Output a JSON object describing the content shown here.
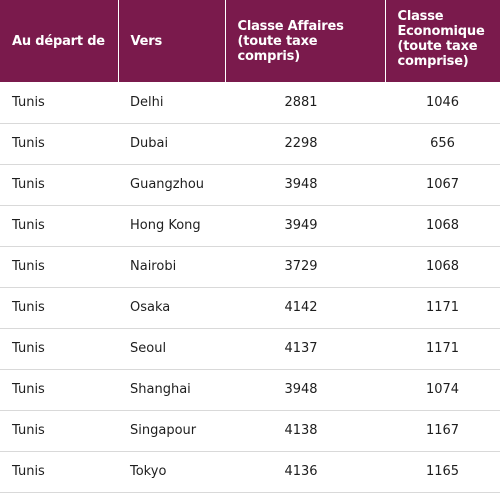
{
  "header": {
    "from_label": "Au départ de",
    "to_label": "Vers",
    "business_label": "Classe Affaires (toute taxe compris)",
    "economy_label": "Classe Economique (toute taxe comprise)"
  },
  "rows": [
    {
      "from": "Tunis",
      "to": "Delhi",
      "business": "2881",
      "economy": "1046"
    },
    {
      "from": "Tunis",
      "to": "Dubai",
      "business": "2298",
      "economy": "656"
    },
    {
      "from": "Tunis",
      "to": "Guangzhou",
      "business": "3948",
      "economy": "1067"
    },
    {
      "from": "Tunis",
      "to": "Hong Kong",
      "business": "3949",
      "economy": "1068"
    },
    {
      "from": "Tunis",
      "to": "Nairobi",
      "business": "3729",
      "economy": "1068"
    },
    {
      "from": "Tunis",
      "to": "Osaka",
      "business": "4142",
      "economy": "1171"
    },
    {
      "from": "Tunis",
      "to": "Seoul",
      "business": "4137",
      "economy": "1171"
    },
    {
      "from": "Tunis",
      "to": "Shanghai",
      "business": "3948",
      "economy": "1074"
    },
    {
      "from": "Tunis",
      "to": "Singapour",
      "business": "4138",
      "economy": "1167"
    },
    {
      "from": "Tunis",
      "to": "Tokyo",
      "business": "4136",
      "economy": "1165"
    }
  ],
  "colors": {
    "header_bg": "#7a1a4c",
    "header_text": "#ffffff",
    "row_divider": "#d9d9d9"
  }
}
